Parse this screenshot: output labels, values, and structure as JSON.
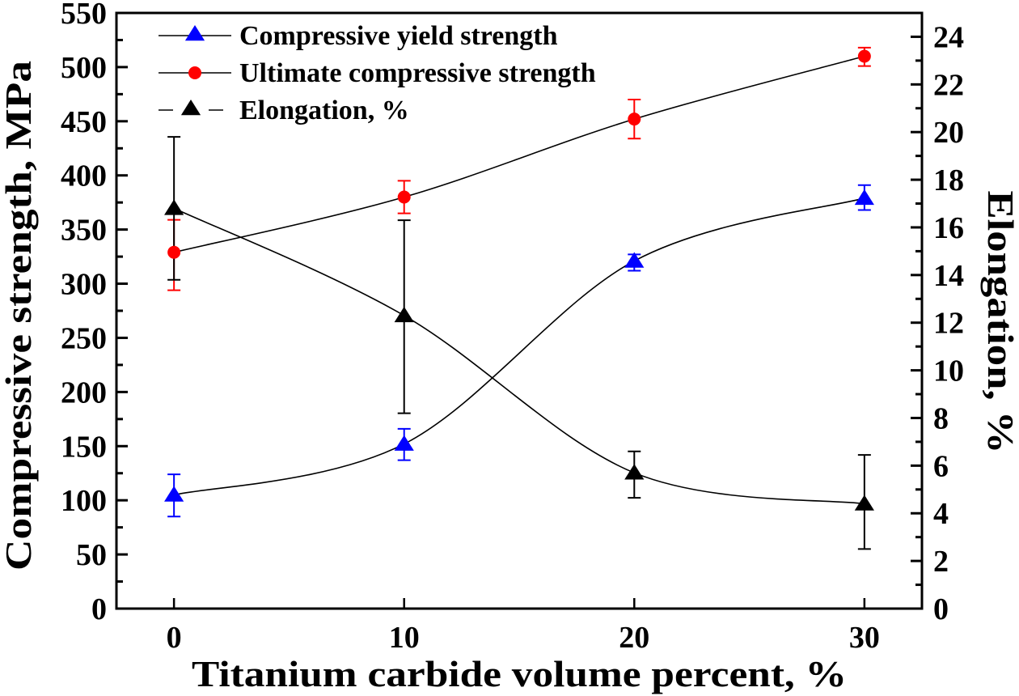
{
  "chart_data": {
    "type": "line",
    "title": "",
    "xlabel": "Titanium carbide volume percent, %",
    "ylabel": "Compressive strength, MPa",
    "y2label": "Elongation, %",
    "x": [
      0,
      10,
      20,
      30
    ],
    "xlim": [
      -2.5,
      32.5
    ],
    "ylim": [
      0,
      550
    ],
    "y2lim": [
      0,
      25
    ],
    "xticks": [
      "0",
      "10",
      "20",
      "30"
    ],
    "yticks": [
      "0",
      "50",
      "100",
      "150",
      "200",
      "250",
      "300",
      "350",
      "400",
      "450",
      "500",
      "550"
    ],
    "y2ticks": [
      "0",
      "2",
      "4",
      "6",
      "8",
      "10",
      "12",
      "14",
      "16",
      "18",
      "20",
      "22",
      "24"
    ],
    "grid": false,
    "legend_position": "top-left",
    "series": [
      {
        "name": "Compressive yield strength",
        "axis": "left",
        "marker": "triangle",
        "color": "#0000ff",
        "line_style": "solid",
        "values": [
          105,
          152,
          321,
          379
        ],
        "err_upper": [
          124,
          166,
          327,
          391
        ],
        "err_lower": [
          85,
          137,
          312,
          368
        ]
      },
      {
        "name": "Ultimate compressive strength",
        "axis": "left",
        "marker": "circle",
        "color": "#ff0000",
        "line_style": "solid",
        "values": [
          329,
          380,
          452,
          510
        ],
        "err_upper": [
          359,
          395,
          470,
          518
        ],
        "err_lower": [
          294,
          365,
          434,
          501
        ]
      },
      {
        "name": "Elongation, %",
        "axis": "right",
        "marker": "triangle",
        "color": "#000000",
        "line_style": "solid",
        "values": [
          16.8,
          12.3,
          5.7,
          4.4
        ],
        "err_upper": [
          19.8,
          16.3,
          6.6,
          6.45
        ],
        "err_lower": [
          13.8,
          8.2,
          4.65,
          2.5
        ]
      }
    ]
  }
}
